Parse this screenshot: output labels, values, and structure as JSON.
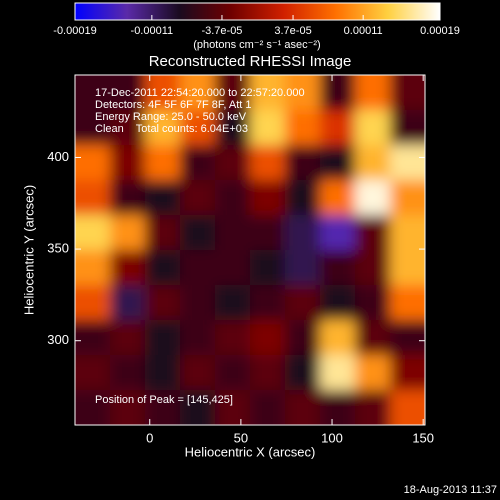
{
  "chart_data": {
    "type": "image",
    "title": "Reconstructed RHESSI Image",
    "colorbar_label": "(photons cm⁻² s⁻¹ asec⁻²)",
    "xlabel": "Heliocentric X (arcsec)",
    "ylabel": "Heliocentric Y (arcsec)",
    "annotations": [
      "17-Dec-2011 22:54:20.000 to 22:57:20.000",
      "Detectors: 4F 5F 6F 7F 8F, Att 1",
      "Energy Range: 25.0 - 50.0 keV",
      "Clean    Total counts: 6.04E+03"
    ],
    "peak_label": "Position of Peak = [145,425]",
    "timestamp": "18-Aug-2013 11:37",
    "xlim": [
      -41,
      151
    ],
    "xticks": [
      0,
      50,
      100,
      150
    ],
    "ylim": [
      254,
      445
    ],
    "yticks": [
      300,
      350,
      400
    ],
    "clim": [
      -0.00019,
      0.00019
    ],
    "cticks": [
      {
        "value": -0.00019,
        "label": "-0.00019"
      },
      {
        "value": -0.00011,
        "label": "-0.00011"
      },
      {
        "value": -3.7e-05,
        "label": "-3.7e-05"
      },
      {
        "value": 3.7e-05,
        "label": "3.7e-05"
      },
      {
        "value": 0.00011,
        "label": "0.00011"
      },
      {
        "value": 0.00019,
        "label": "0.00019"
      }
    ],
    "colormap": [
      "#0000ff",
      "#5a2aa8",
      "#1a0a20",
      "#700000",
      "#d02000",
      "#ff7000",
      "#ffd040",
      "#ffffff"
    ],
    "values": [
      [
        -6e-05,
        -6e-05,
        6e-05,
        0.0001,
        -4e-05,
        0.00012,
        0.0001,
        -6e-05,
        8e-05,
        -4e-05
      ],
      [
        -6e-05,
        -4e-05,
        0.00012,
        6e-05,
        -8e-05,
        0.00014,
        8e-05,
        4e-05,
        0.00014,
        -6e-05
      ],
      [
        8e-05,
        -2e-05,
        8e-05,
        -6e-05,
        -4e-05,
        6e-05,
        -6e-05,
        -8e-05,
        0.00012,
        0.00016
      ],
      [
        6e-05,
        -6e-05,
        -8e-05,
        -4e-05,
        -6e-05,
        -2e-05,
        -8e-05,
        8e-05,
        0.00018,
        0.0001
      ],
      [
        0.00014,
        0.0001,
        -4e-05,
        -8e-05,
        -6e-05,
        -6e-05,
        -0.0001,
        -0.00014,
        -4e-05,
        0.00012
      ],
      [
        0.0001,
        -2e-05,
        -8e-05,
        -6e-05,
        -6e-05,
        -8e-05,
        -0.0001,
        -6e-05,
        -4e-05,
        0.00012
      ],
      [
        6e-05,
        -0.0001,
        -4e-05,
        -6e-05,
        -8e-05,
        -6e-05,
        -4e-05,
        -8e-05,
        -6e-05,
        8e-05
      ],
      [
        -6e-05,
        -4e-05,
        -8e-05,
        -6e-05,
        -4e-05,
        -2e-05,
        -6e-05,
        0.00012,
        -4e-05,
        -6e-05
      ],
      [
        -4e-05,
        -6e-05,
        -8e-05,
        -4e-05,
        -6e-05,
        -4e-05,
        -8e-05,
        0.00016,
        0.0001,
        -2e-05
      ],
      [
        -6e-05,
        -4e-05,
        -6e-05,
        -8e-05,
        -4e-05,
        -6e-05,
        -4e-05,
        -6e-05,
        -4e-05,
        6e-05
      ]
    ]
  }
}
